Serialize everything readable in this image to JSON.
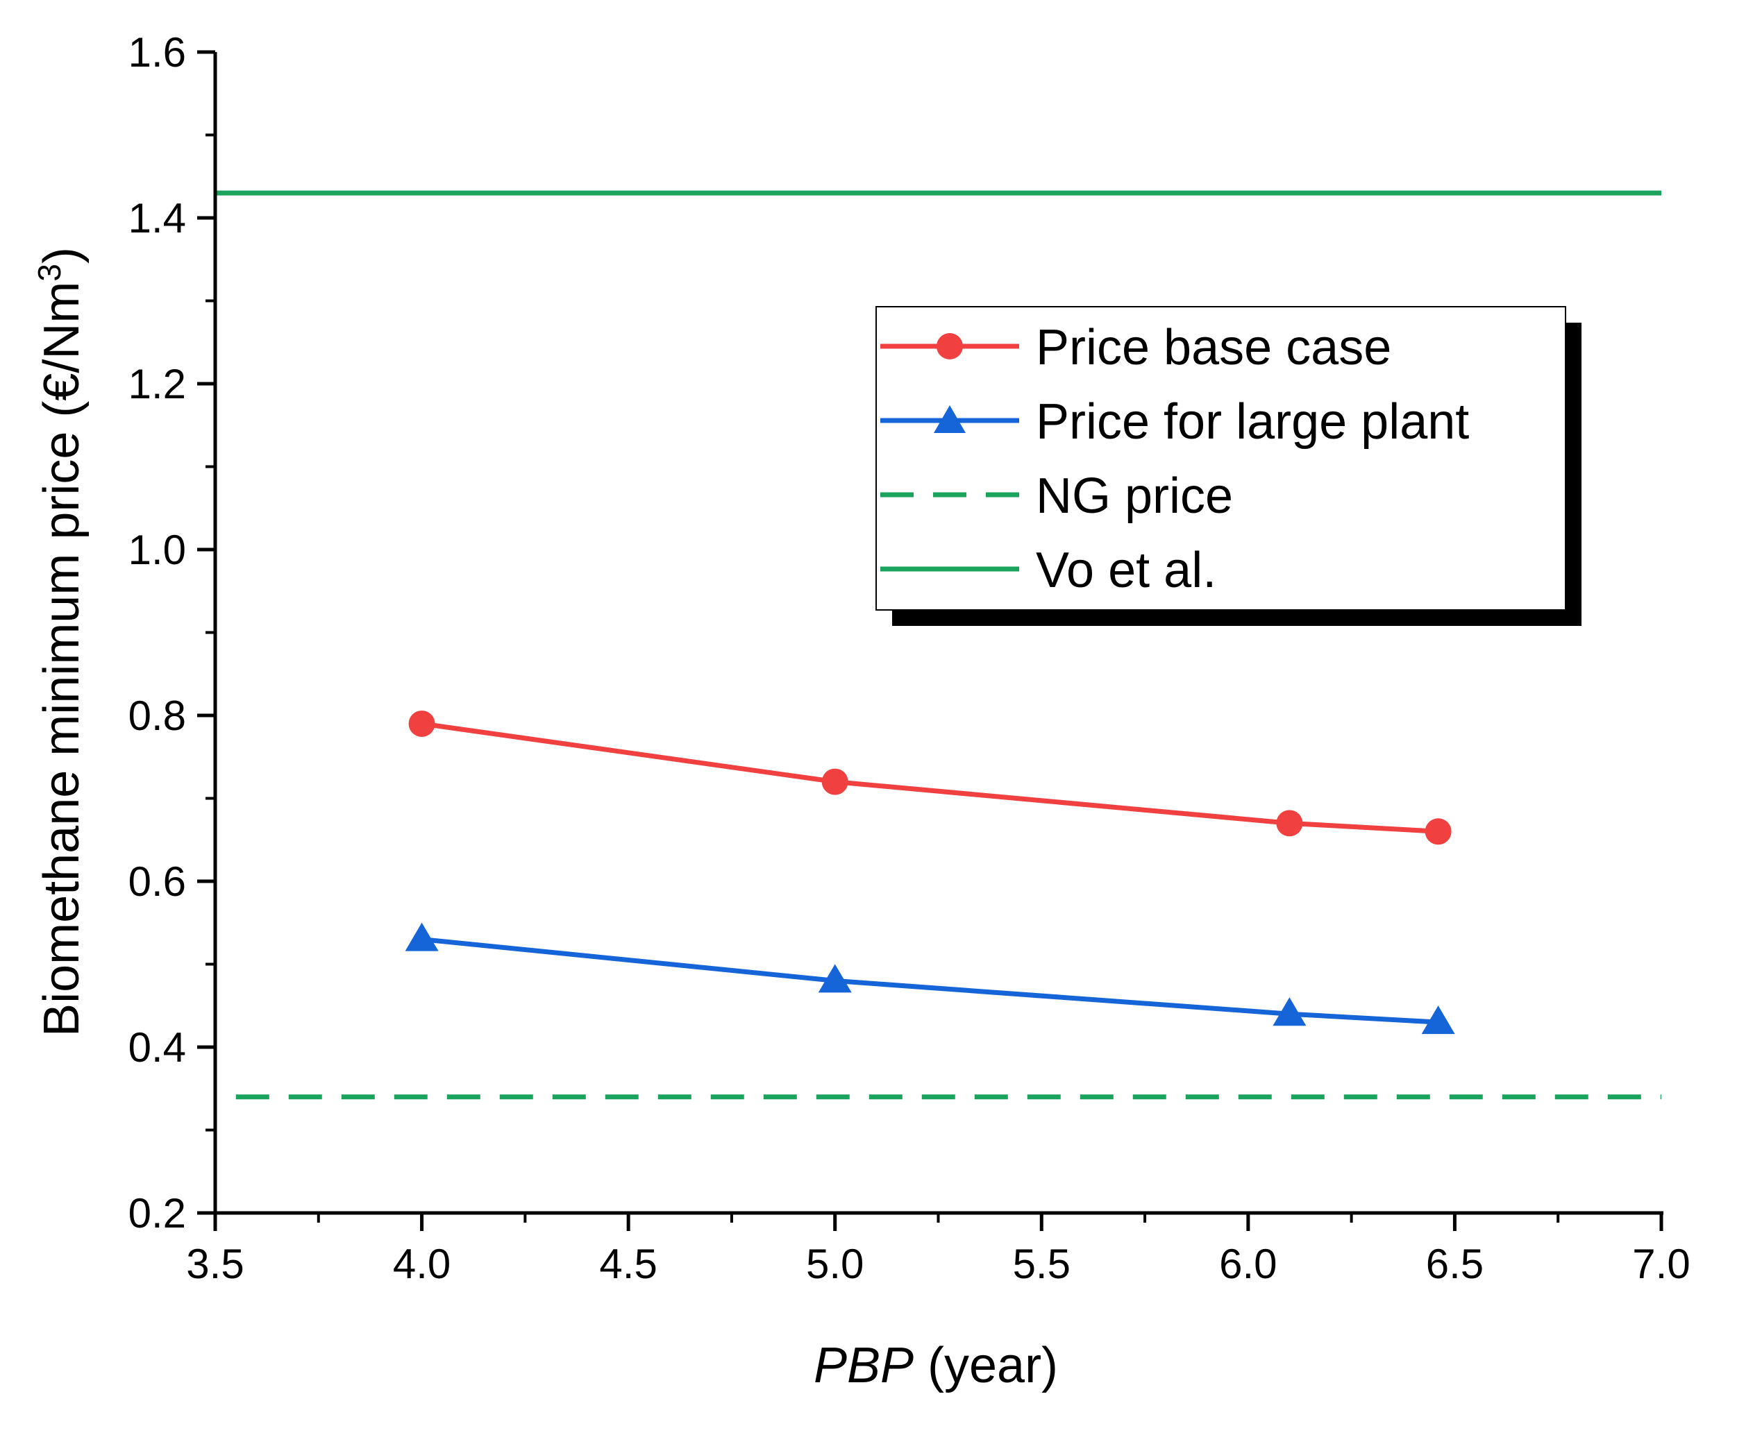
{
  "chart_data": {
    "type": "line",
    "xlabel_italic": "PBP",
    "xlabel_rest": " (year)",
    "ylabel_main": "Biomethane minimum price (€/Nm",
    "ylabel_sup": "3",
    "ylabel_end": ")",
    "xlim": [
      3.5,
      7.0
    ],
    "ylim": [
      0.2,
      1.6
    ],
    "x_ticks": [
      "3.5",
      "4.0",
      "4.5",
      "5.0",
      "5.5",
      "6.0",
      "6.5",
      "7.0"
    ],
    "y_ticks": [
      "0.2",
      "0.4",
      "0.6",
      "0.8",
      "1.0",
      "1.2",
      "1.4",
      "1.6"
    ],
    "series": [
      {
        "name": "Price base case",
        "color": "#f04040",
        "marker": "circle",
        "x": [
          4.0,
          5.0,
          6.1,
          6.46
        ],
        "y": [
          0.79,
          0.72,
          0.67,
          0.66
        ]
      },
      {
        "name": "Price for large plant",
        "color": "#1565d8",
        "marker": "triangle",
        "x": [
          4.0,
          5.0,
          6.1,
          6.46
        ],
        "y": [
          0.53,
          0.48,
          0.44,
          0.43
        ]
      }
    ],
    "reference_lines": [
      {
        "name": "NG price",
        "color": "#1aa35c",
        "style": "dashed",
        "y": 0.34,
        "x_start": 3.55
      },
      {
        "name": "Vo et al.",
        "color": "#1aa35c",
        "style": "solid",
        "y": 1.43,
        "x_start": 3.5
      }
    ],
    "legend": [
      "Price base case",
      "Price for large plant",
      "NG price",
      "Vo et al."
    ],
    "legend_position": "upper-right"
  }
}
